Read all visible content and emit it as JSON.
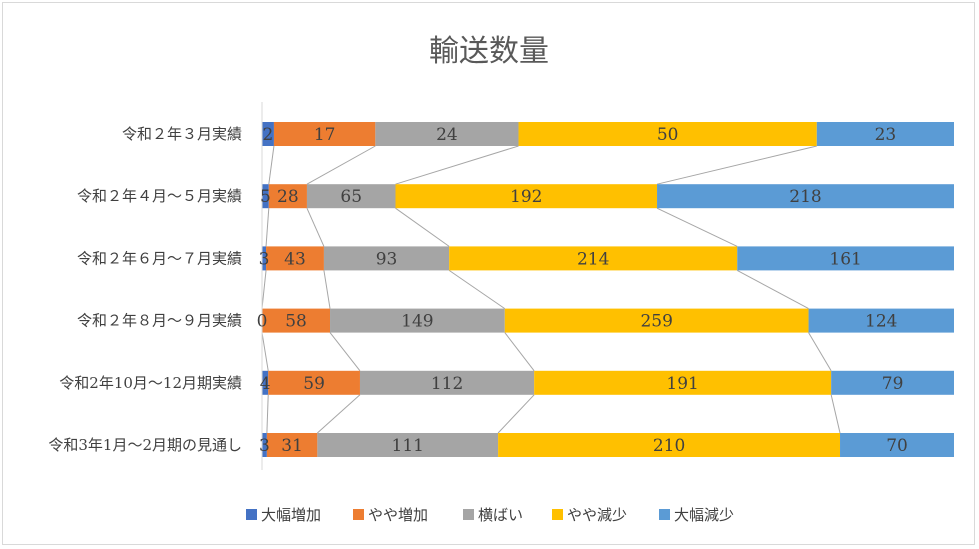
{
  "chart_data": {
    "type": "bar",
    "orientation": "horizontal",
    "stacked": "percent",
    "title": "輸送数量",
    "categories": [
      "令和２年３月実績",
      "令和２年４月～５月実績",
      "令和２年６月～７月実績",
      "令和２年８月～９月実績",
      "令和2年10月～12月期実績",
      "令和3年1月～2月期の見通し"
    ],
    "series": [
      {
        "name": "大幅増加",
        "color": "#4472c4",
        "values": [
          2,
          5,
          3,
          0,
          4,
          3
        ]
      },
      {
        "name": "やや増加",
        "color": "#ed7d31",
        "values": [
          17,
          28,
          43,
          58,
          59,
          31
        ]
      },
      {
        "name": "横ばい",
        "color": "#a5a5a5",
        "values": [
          24,
          65,
          93,
          149,
          112,
          111
        ]
      },
      {
        "name": "やや減少",
        "color": "#ffc000",
        "values": [
          50,
          192,
          214,
          259,
          191,
          210
        ]
      },
      {
        "name": "大幅減少",
        "color": "#5b9bd5",
        "values": [
          23,
          218,
          161,
          124,
          79,
          70
        ]
      }
    ],
    "series_lines": true,
    "legend_position": "bottom",
    "grid": false
  }
}
